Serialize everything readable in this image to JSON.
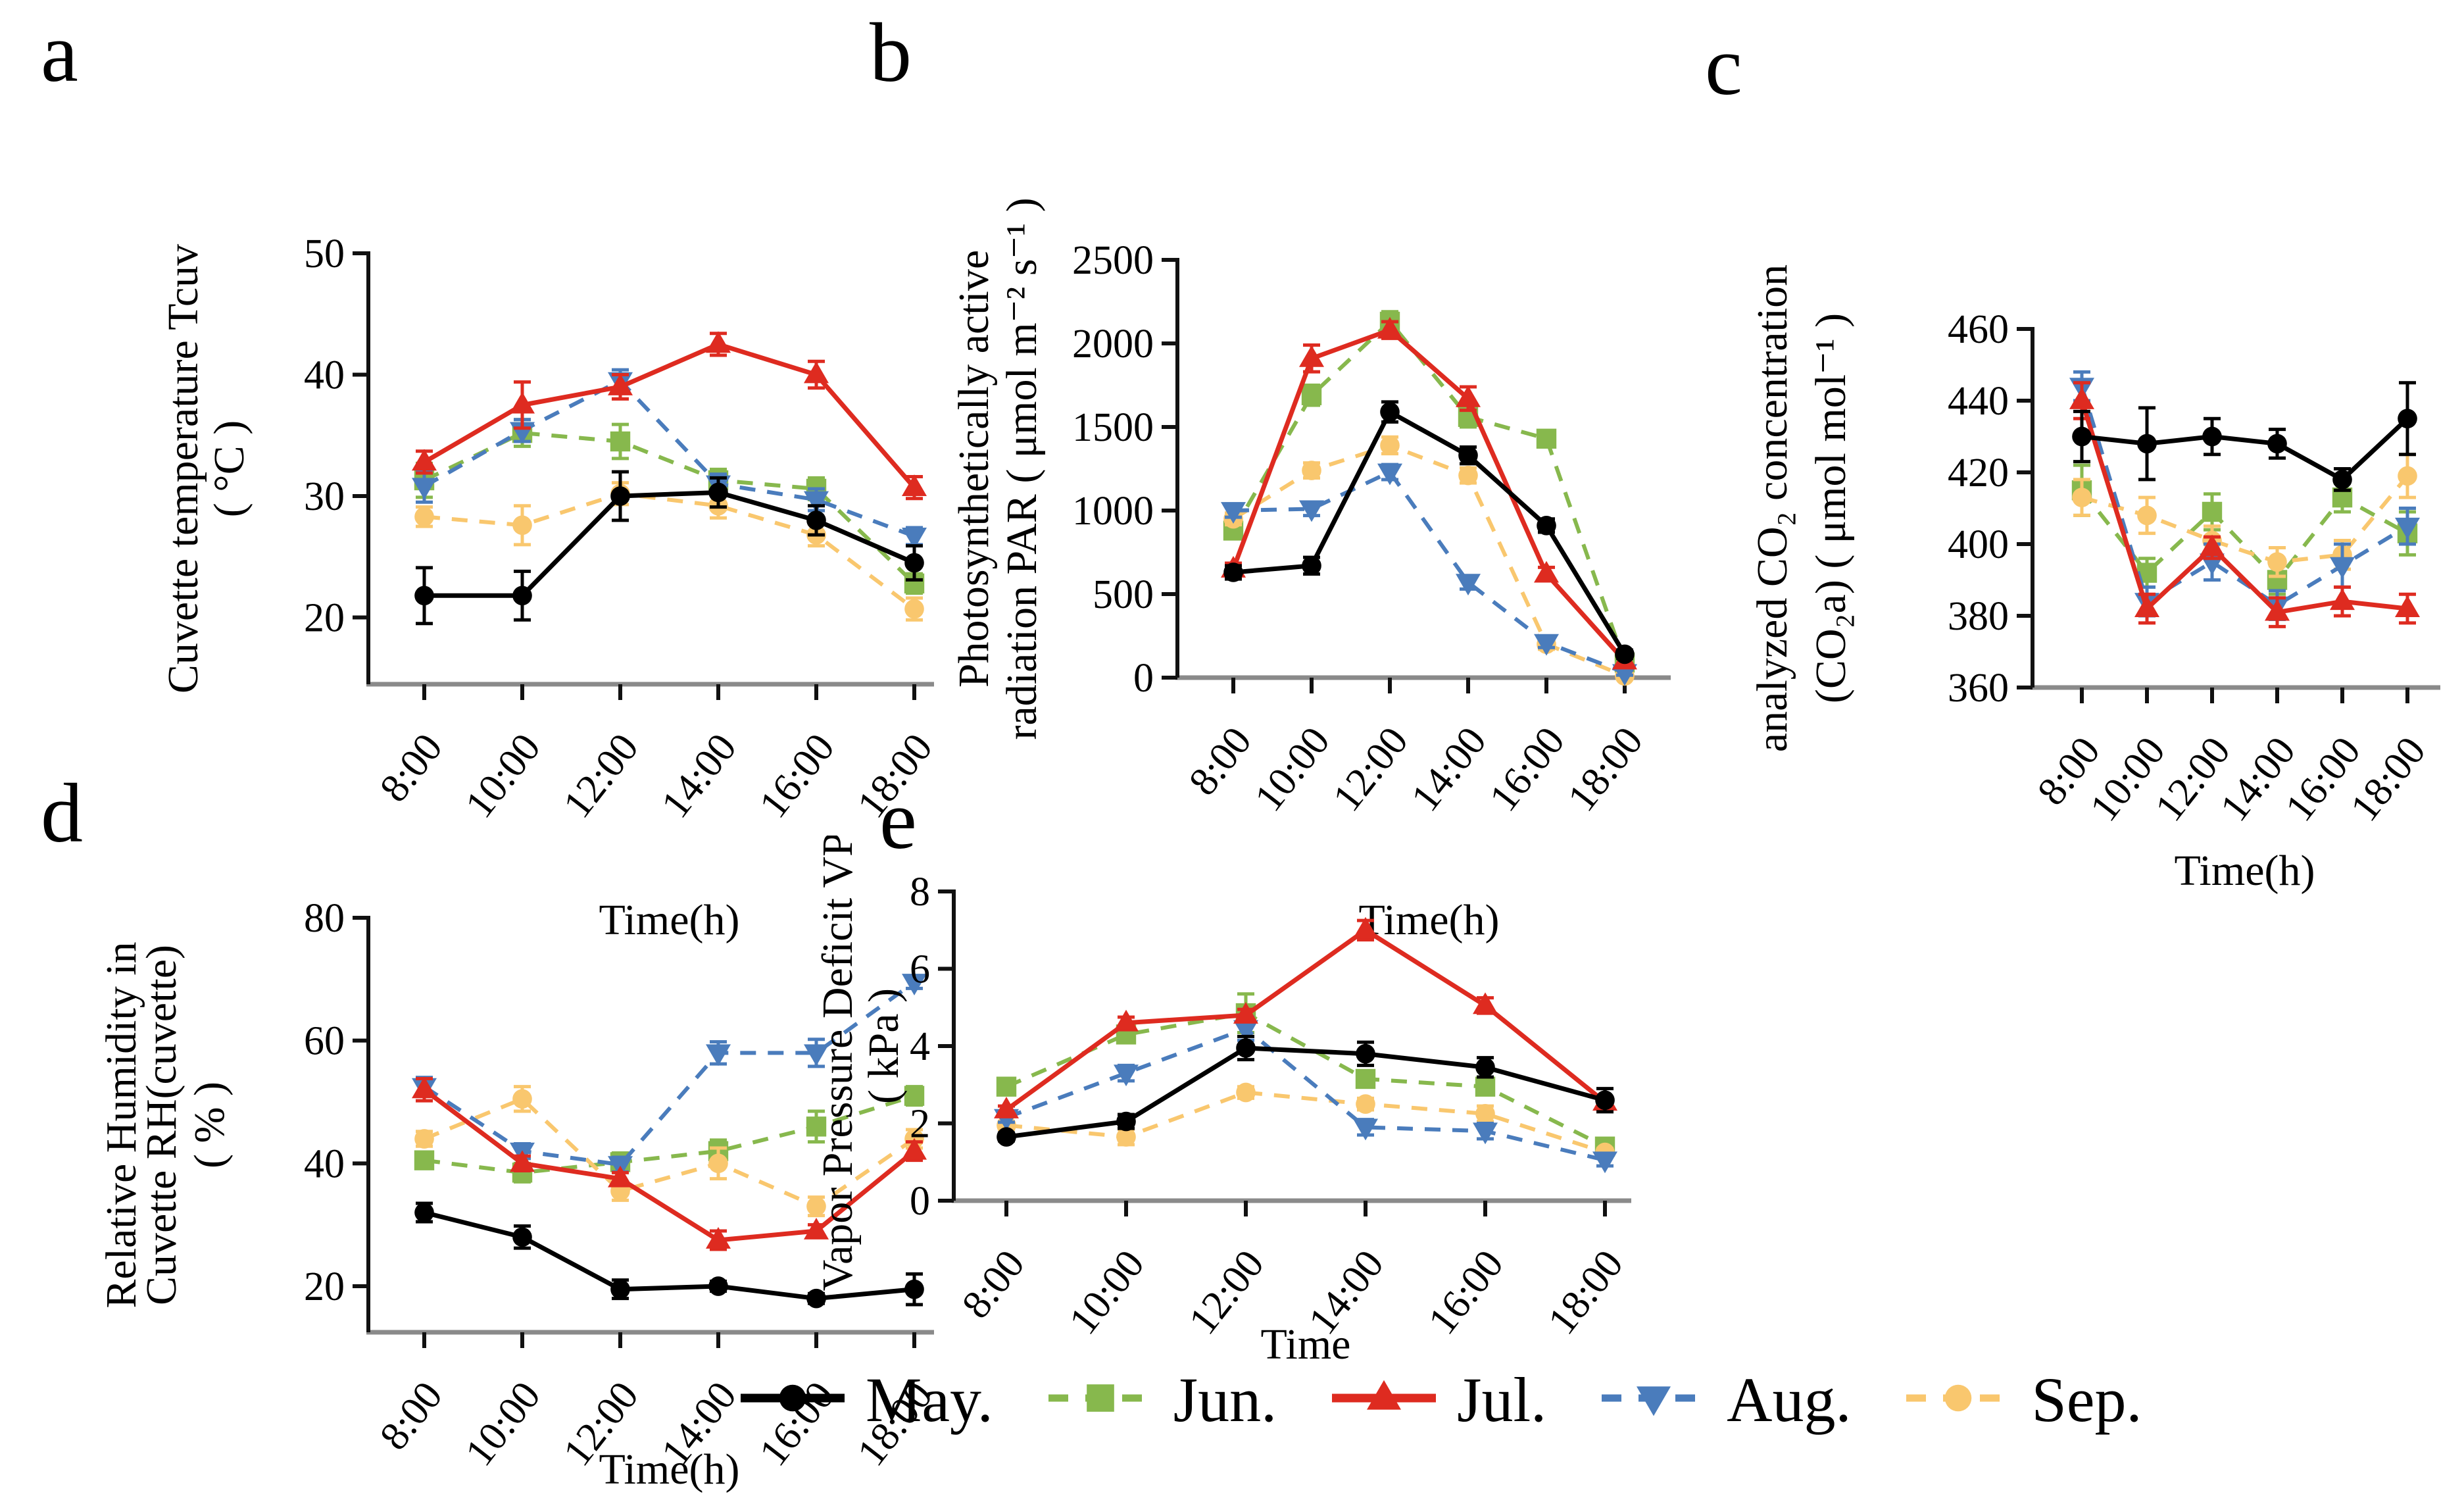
{
  "figure_title": "",
  "legend": {
    "position": "bottom-center",
    "items": [
      {
        "label": "May.",
        "color": "#000000",
        "marker": "circle",
        "line": "solid"
      },
      {
        "label": "Jun.",
        "color": "#87B84D",
        "marker": "square",
        "line": "dashed"
      },
      {
        "label": "Jul.",
        "color": "#DE2B20",
        "marker": "triangle-up",
        "line": "solid"
      },
      {
        "label": "Aug.",
        "color": "#4A7CBC",
        "marker": "triangle-down",
        "line": "dashed"
      },
      {
        "label": "Sep.",
        "color": "#F9C76E",
        "marker": "circle",
        "line": "dashed"
      }
    ]
  },
  "chart_data": [
    {
      "type": "line",
      "panel": "a",
      "x_categories": [
        "8:00",
        "10:00",
        "12:00",
        "14:00",
        "16:00",
        "18:00"
      ],
      "xlabel": "Time(h)",
      "ylabel_lines": [
        "Cuvette temperature Tcuv",
        "( °C )"
      ],
      "ylim": [
        14.5,
        50
      ],
      "yticks": [
        20,
        30,
        40,
        50
      ],
      "grid": false,
      "series": [
        {
          "name": "May.",
          "color": "#000000",
          "marker": "circle",
          "line": "solid",
          "values": [
            21.8,
            21.8,
            30.0,
            30.3,
            28.0,
            24.5
          ],
          "errors": [
            2.3,
            2.0,
            2.0,
            1.2,
            1.2,
            1.4
          ]
        },
        {
          "name": "Jun.",
          "color": "#87B84D",
          "marker": "square",
          "line": "dashed",
          "values": [
            31.3,
            35.2,
            34.5,
            31.3,
            30.6,
            22.8
          ],
          "errors": [
            1.4,
            1.1,
            1.4,
            0.9,
            0.9,
            0.8
          ]
        },
        {
          "name": "Jul.",
          "color": "#DE2B20",
          "marker": "triangle-up",
          "line": "solid",
          "values": [
            32.8,
            37.5,
            39.0,
            42.5,
            40.0,
            30.7
          ],
          "errors": [
            0.9,
            1.9,
            1.0,
            0.9,
            1.1,
            0.9
          ]
        },
        {
          "name": "Aug.",
          "color": "#4A7CBC",
          "marker": "triangle-down",
          "line": "dashed",
          "values": [
            30.8,
            35.4,
            39.5,
            31.0,
            29.7,
            26.7
          ],
          "errors": [
            1.3,
            0.9,
            0.9,
            0.8,
            0.9,
            0.7
          ]
        },
        {
          "name": "Sep.",
          "color": "#F9C76E",
          "marker": "circle",
          "line": "dashed",
          "values": [
            28.3,
            27.6,
            30.2,
            29.2,
            26.8,
            20.7
          ],
          "errors": [
            0.8,
            1.6,
            0.9,
            1.0,
            0.9,
            0.9
          ]
        }
      ]
    },
    {
      "type": "line",
      "panel": "b",
      "x_categories": [
        "8:00",
        "10:00",
        "12:00",
        "14:00",
        "16:00",
        "18:00"
      ],
      "xlabel": "Time(h)",
      "ylabel_lines": [
        "Photosynthetically active",
        "radiation PAR ( μmol m⁻² s⁻¹ )"
      ],
      "ylim": [
        0,
        2500
      ],
      "yticks": [
        0,
        500,
        1000,
        1500,
        2000,
        2500
      ],
      "grid": false,
      "series": [
        {
          "name": "May.",
          "color": "#000000",
          "marker": "circle",
          "line": "solid",
          "values": [
            630,
            670,
            1590,
            1330,
            910,
            140
          ],
          "errors": [
            40,
            50,
            60,
            50,
            40,
            25
          ]
        },
        {
          "name": "Jun.",
          "color": "#87B84D",
          "marker": "square",
          "line": "dashed",
          "values": [
            880,
            1690,
            2130,
            1560,
            1430,
            90
          ],
          "errors": [
            40,
            60,
            60,
            60,
            40,
            20
          ]
        },
        {
          "name": "Jul.",
          "color": "#DE2B20",
          "marker": "triangle-up",
          "line": "solid",
          "values": [
            650,
            1910,
            2080,
            1670,
            620,
            100
          ],
          "errors": [
            35,
            80,
            50,
            70,
            40,
            20
          ]
        },
        {
          "name": "Aug.",
          "color": "#4A7CBC",
          "marker": "triangle-down",
          "line": "dashed",
          "values": [
            1000,
            1010,
            1230,
            570,
            210,
            30
          ],
          "errors": [
            40,
            40,
            45,
            40,
            30,
            15
          ]
        },
        {
          "name": "Sep.",
          "color": "#F9C76E",
          "marker": "circle",
          "line": "dashed",
          "values": [
            950,
            1240,
            1390,
            1210,
            200,
            10
          ],
          "errors": [
            35,
            45,
            50,
            45,
            30,
            10
          ]
        }
      ]
    },
    {
      "type": "line",
      "panel": "c",
      "x_categories": [
        "8:00",
        "10:00",
        "12:00",
        "14:00",
        "16:00",
        "18:00"
      ],
      "xlabel": "Time(h)",
      "ylabel_lines": [
        "analyzed CO₂ concentration",
        "(CO₂a) ( μmol mol⁻¹ )"
      ],
      "ylim": [
        360,
        460
      ],
      "yticks": [
        360,
        380,
        400,
        420,
        440,
        460
      ],
      "grid": false,
      "series": [
        {
          "name": "May.",
          "color": "#000000",
          "marker": "circle",
          "line": "solid",
          "values": [
            430,
            428,
            430,
            428,
            418,
            435
          ],
          "errors": [
            7,
            10,
            5,
            4,
            3,
            10
          ]
        },
        {
          "name": "Jun.",
          "color": "#87B84D",
          "marker": "square",
          "line": "dashed",
          "values": [
            415,
            392,
            409,
            390,
            413,
            403
          ],
          "errors": [
            7,
            4,
            5,
            4,
            4,
            6
          ]
        },
        {
          "name": "Jul.",
          "color": "#DE2B20",
          "marker": "triangle-up",
          "line": "solid",
          "values": [
            440,
            382,
            399,
            381,
            384,
            382
          ],
          "errors": [
            5,
            4,
            3,
            4,
            4,
            4
          ]
        },
        {
          "name": "Aug.",
          "color": "#4A7CBC",
          "marker": "triangle-down",
          "line": "dashed",
          "values": [
            444,
            384,
            395,
            383,
            394,
            405
          ],
          "errors": [
            4,
            4,
            5,
            4,
            6,
            5
          ]
        },
        {
          "name": "Sep.",
          "color": "#F9C76E",
          "marker": "circle",
          "line": "dashed",
          "values": [
            413,
            408,
            401,
            395,
            397,
            419
          ],
          "errors": [
            5,
            5,
            4,
            4,
            4,
            6
          ]
        }
      ]
    },
    {
      "type": "line",
      "panel": "d",
      "x_categories": [
        "8:00",
        "10:00",
        "12:00",
        "14:00",
        "16:00",
        "18:00"
      ],
      "xlabel": "Time(h)",
      "ylabel_lines": [
        "Relative Humidity in",
        "Cuvette RH(cuvette)",
        "( % )"
      ],
      "ylim": [
        12.5,
        80
      ],
      "yticks": [
        20,
        40,
        60,
        80
      ],
      "grid": false,
      "series": [
        {
          "name": "May.",
          "color": "#000000",
          "marker": "circle",
          "line": "solid",
          "values": [
            32,
            28,
            19.5,
            20,
            18,
            19.5
          ],
          "errors": [
            1.5,
            1.8,
            1.5,
            0.8,
            0.8,
            2.5
          ]
        },
        {
          "name": "Jun.",
          "color": "#87B84D",
          "marker": "square",
          "line": "dashed",
          "values": [
            40.5,
            38.5,
            40.2,
            42,
            46,
            51
          ],
          "errors": [
            1.2,
            1.5,
            1.5,
            1.8,
            2.5,
            1.5
          ]
        },
        {
          "name": "Jul.",
          "color": "#DE2B20",
          "marker": "triangle-up",
          "line": "solid",
          "values": [
            52,
            40,
            37.5,
            27.5,
            29,
            42
          ],
          "errors": [
            1.8,
            1.2,
            1.0,
            1.5,
            1.0,
            1.5
          ]
        },
        {
          "name": "Aug.",
          "color": "#4A7CBC",
          "marker": "triangle-down",
          "line": "dashed",
          "values": [
            52.5,
            42,
            39.8,
            58,
            58,
            69.5
          ],
          "errors": [
            1.5,
            1.2,
            1.2,
            1.8,
            2.2,
            1.0
          ]
        },
        {
          "name": "Sep.",
          "color": "#F9C76E",
          "marker": "circle",
          "line": "dashed",
          "values": [
            44,
            50.5,
            35.5,
            40,
            33,
            44
          ],
          "errors": [
            1.2,
            2.0,
            1.5,
            2.5,
            1.5,
            1.5
          ]
        }
      ]
    },
    {
      "type": "line",
      "panel": "e",
      "x_categories": [
        "8:00",
        "10:00",
        "12:00",
        "14:00",
        "16:00",
        "18:00"
      ],
      "xlabel": "Time",
      "ylabel_lines": [
        "Vapor Pressure Deficit VPD",
        "( kPa )"
      ],
      "ylim": [
        0,
        8
      ],
      "yticks": [
        0,
        2,
        4,
        6,
        8
      ],
      "grid": false,
      "series": [
        {
          "name": "May.",
          "color": "#000000",
          "marker": "circle",
          "line": "solid",
          "values": [
            1.65,
            2.05,
            3.95,
            3.8,
            3.45,
            2.6
          ],
          "errors": [
            0.1,
            0.18,
            0.3,
            0.3,
            0.25,
            0.3
          ]
        },
        {
          "name": "Jun.",
          "color": "#87B84D",
          "marker": "square",
          "line": "dashed",
          "values": [
            2.95,
            4.3,
            4.85,
            3.15,
            2.95,
            1.4
          ],
          "errors": [
            0.08,
            0.15,
            0.5,
            0.15,
            0.15,
            0.08
          ]
        },
        {
          "name": "Jul.",
          "color": "#DE2B20",
          "marker": "triangle-up",
          "line": "solid",
          "values": [
            2.35,
            4.6,
            4.8,
            7.0,
            5.05,
            2.55
          ],
          "errors": [
            0.1,
            0.15,
            0.15,
            0.25,
            0.2,
            0.12
          ]
        },
        {
          "name": "Aug.",
          "color": "#4A7CBC",
          "marker": "triangle-down",
          "line": "dashed",
          "values": [
            2.15,
            3.3,
            4.45,
            1.9,
            1.8,
            1.05
          ],
          "errors": [
            0.12,
            0.2,
            0.3,
            0.2,
            0.2,
            0.15
          ]
        },
        {
          "name": "Sep.",
          "color": "#F9C76E",
          "marker": "circle",
          "line": "dashed",
          "values": [
            1.95,
            1.65,
            2.8,
            2.5,
            2.25,
            1.25
          ],
          "errors": [
            0.1,
            0.2,
            0.15,
            0.15,
            0.2,
            0.1
          ]
        }
      ]
    }
  ]
}
